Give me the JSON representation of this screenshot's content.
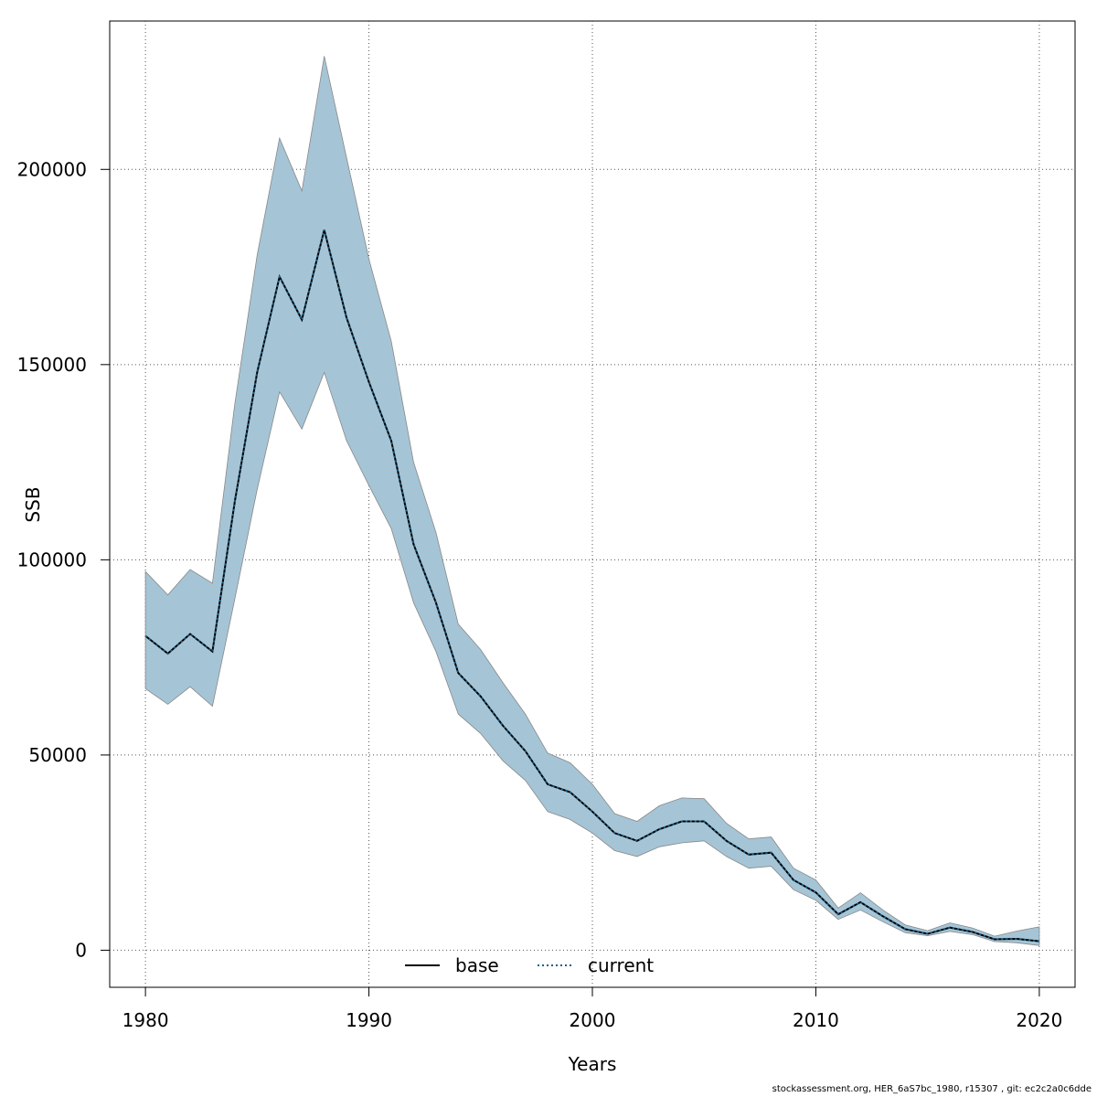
{
  "chart_data": {
    "type": "area",
    "xlabel": "Years",
    "ylabel": "SSB",
    "xlim": [
      1978.4,
      2021.6
    ],
    "ylim": [
      -9500,
      238000
    ],
    "xticks": [
      1980,
      1990,
      2000,
      2010,
      2020
    ],
    "yticks": [
      0,
      50000,
      100000,
      150000,
      200000
    ],
    "grid": true,
    "legend_position": "bottom-center",
    "years": [
      1980,
      1981,
      1982,
      1983,
      1984,
      1985,
      1986,
      1987,
      1988,
      1989,
      1990,
      1991,
      1992,
      1993,
      1994,
      1995,
      1996,
      1997,
      1998,
      1999,
      2000,
      2001,
      2002,
      2003,
      2004,
      2005,
      2006,
      2007,
      2008,
      2009,
      2010,
      2011,
      2012,
      2013,
      2014,
      2015,
      2016,
      2017,
      2018,
      2019,
      2020
    ],
    "band": {
      "upper": [
        97000,
        91000,
        97500,
        94000,
        140000,
        178000,
        208000,
        194500,
        229000,
        203000,
        177000,
        156000,
        125000,
        107000,
        83500,
        77000,
        68500,
        60500,
        50500,
        48000,
        42500,
        35000,
        33000,
        37000,
        39000,
        38800,
        32500,
        28500,
        29000,
        21000,
        18000,
        10800,
        14700,
        10300,
        6500,
        5000,
        7000,
        5700,
        3600,
        4900,
        6000
      ],
      "lower": [
        67000,
        63000,
        67500,
        62500,
        90000,
        118000,
        143000,
        133500,
        148000,
        130500,
        119000,
        108000,
        89000,
        76500,
        60500,
        55500,
        48500,
        43500,
        35500,
        33500,
        30000,
        25500,
        24000,
        26500,
        27500,
        28000,
        24000,
        21000,
        21500,
        15500,
        12800,
        7900,
        10300,
        7300,
        4500,
        3700,
        4800,
        4000,
        2200,
        1900,
        1200
      ],
      "color": "#a5c5d6",
      "edge_color": "#888888"
    },
    "series": [
      {
        "name": "base",
        "style": "solid",
        "color": "#000000",
        "values": [
          80500,
          76000,
          81000,
          76500,
          115000,
          148000,
          172500,
          161500,
          184500,
          162000,
          145500,
          130500,
          104000,
          89000,
          71000,
          65000,
          57500,
          51000,
          42500,
          40500,
          35500,
          30000,
          28000,
          31000,
          33000,
          33000,
          28000,
          24500,
          25000,
          18000,
          14800,
          9200,
          12300,
          8700,
          5400,
          4200,
          5800,
          4700,
          2800,
          2900,
          2300
        ]
      },
      {
        "name": "current",
        "style": "dotted",
        "color": "#1f5e86",
        "values": [
          80500,
          76000,
          81000,
          76500,
          115000,
          148000,
          172500,
          161500,
          184500,
          162000,
          145500,
          130500,
          104000,
          89000,
          71000,
          65000,
          57500,
          51000,
          42500,
          40500,
          35500,
          30000,
          28000,
          31000,
          33000,
          33000,
          28000,
          24500,
          25000,
          18000,
          14800,
          9200,
          12300,
          8700,
          5400,
          4200,
          5800,
          4700,
          2800,
          2900,
          2300
        ]
      }
    ]
  },
  "footer": "stockassessment.org, HER_6aS7bc_1980, r15307 , git: ec2c2a0c6dde"
}
